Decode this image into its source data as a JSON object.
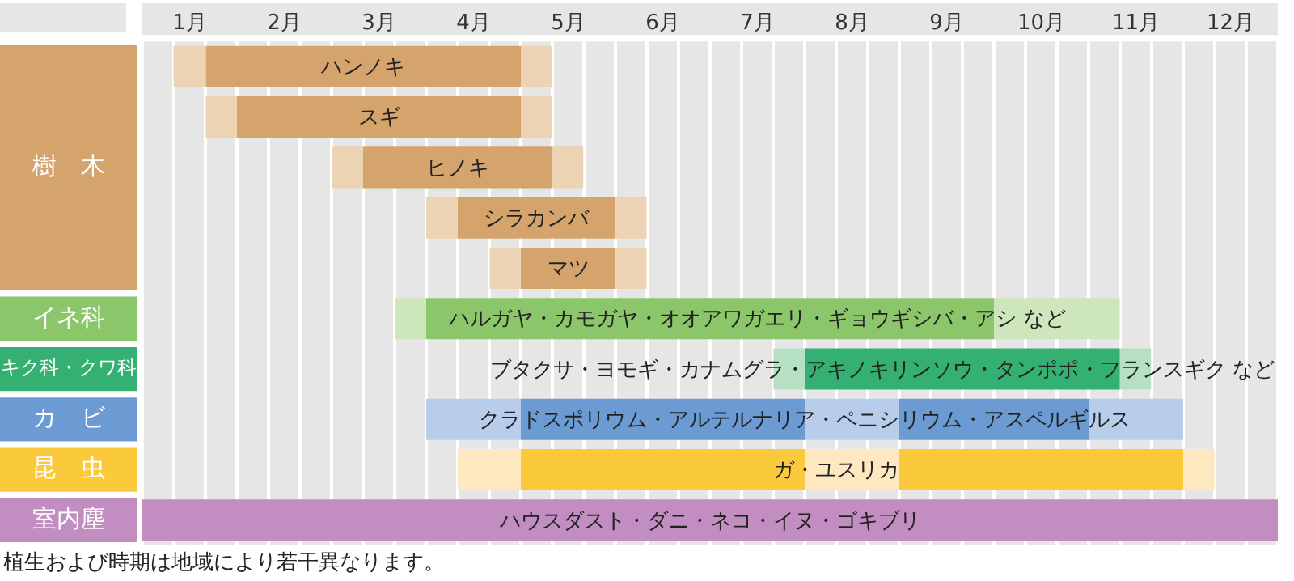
{
  "chart_data": {
    "type": "bar",
    "orientation": "horizontal",
    "categories": [
      "ハンノキ",
      "スギ",
      "ヒノキ",
      "シラカンバ",
      "マツ",
      "ハルガヤ・カモガヤ・オオアワガエリ・ギョウギシバ・アシ など",
      "ブタクサ・ヨモギ・カナムグラ・アキノキリンソウ・タンポポ・フランスギク など",
      "クラドスポリウム・アルテルナリア・ペニシリウム・アスペルギルス",
      "ガ・ユスリカ",
      "ハウスダスト・ダニ・ネコ・イヌ・ゴキブリ"
    ],
    "series": [
      {
        "values": [
          0.33,
          0.33,
          0.33,
          0.33,
          0.33,
          0.33,
          0.33,
          1,
          0.67,
          null
        ],
        "base": [
          0.83,
          1.17,
          2.5,
          3.5,
          4.17,
          3.17,
          7.17,
          3.5,
          3.83,
          null
        ],
        "colors": [
          "#ecd3b4",
          "#ecd3b4",
          "#ecd3b4",
          "#ecd3b4",
          "#ecd3b4",
          "#cde6bc",
          "#b5e0c4",
          "#b8cdea",
          "#fde8bf",
          null
        ]
      },
      {
        "values": [
          3.33,
          3,
          2,
          1.67,
          1,
          6,
          3.33,
          3,
          3,
          12
        ],
        "base": [
          1.17,
          1.5,
          2.83,
          3.83,
          4.5,
          3.5,
          7.5,
          4.5,
          4.5,
          0.5
        ],
        "colors": [
          "#d4a46c",
          "#d4a46c",
          "#d4a46c",
          "#d4a46c",
          "#d4a46c",
          "#8cc66a",
          "#35b073",
          "#6b9bd2",
          "#fac93c",
          "#c28dc0"
        ]
      },
      {
        "values": [
          0.33,
          0.33,
          0.33,
          0.33,
          0.33,
          1.33,
          0.33,
          1,
          1,
          null
        ],
        "base": [
          4.5,
          4.5,
          4.83,
          5.5,
          5.5,
          9.5,
          10.83,
          7.5,
          7.5,
          null
        ],
        "colors": [
          "#ecd3b4",
          "#ecd3b4",
          "#ecd3b4",
          "#ecd3b4",
          "#ecd3b4",
          "#cde6bc",
          "#b5e0c4",
          "#b8cdea",
          "#fde8bf",
          null
        ]
      },
      {
        "values": [
          null,
          null,
          null,
          null,
          null,
          null,
          null,
          2,
          3,
          null
        ],
        "base": [
          null,
          null,
          null,
          null,
          null,
          null,
          null,
          8.5,
          8.5,
          null
        ],
        "colors": [
          null,
          null,
          null,
          null,
          null,
          null,
          null,
          "#6b9bd2",
          "#fac93c",
          null
        ]
      },
      {
        "values": [
          null,
          null,
          null,
          null,
          null,
          null,
          null,
          1,
          0.33,
          null
        ],
        "base": [
          null,
          null,
          null,
          null,
          null,
          null,
          null,
          10.5,
          11.5,
          null
        ],
        "colors": [
          null,
          null,
          null,
          null,
          null,
          null,
          null,
          "#b8cdea",
          "#fde8bf",
          null
        ]
      }
    ],
    "xlim": [
      0.5,
      12.5
    ],
    "xticks": [
      {
        "value": 0.5,
        "label": null
      },
      {
        "value": 0.83,
        "label": null
      },
      {
        "value": 1,
        "label": "1月"
      },
      {
        "value": 1.17,
        "label": null
      },
      {
        "value": 1.5,
        "label": null
      },
      {
        "value": 1.83,
        "label": null
      },
      {
        "value": 2,
        "label": "2月"
      },
      {
        "value": 2.17,
        "label": null
      },
      {
        "value": 2.5,
        "label": null
      },
      {
        "value": 2.83,
        "label": null
      },
      {
        "value": 3,
        "label": "3月"
      },
      {
        "value": 3.17,
        "label": null
      },
      {
        "value": 3.5,
        "label": null
      },
      {
        "value": 3.83,
        "label": null
      },
      {
        "value": 4,
        "label": "4月"
      },
      {
        "value": 4.17,
        "label": null
      },
      {
        "value": 4.5,
        "label": null
      },
      {
        "value": 4.83,
        "label": null
      },
      {
        "value": 5,
        "label": "5月"
      },
      {
        "value": 5.17,
        "label": null
      },
      {
        "value": 5.5,
        "label": null
      },
      {
        "value": 5.83,
        "label": null
      },
      {
        "value": 6,
        "label": "6月"
      },
      {
        "value": 6.17,
        "label": null
      },
      {
        "value": 6.5,
        "label": null
      },
      {
        "value": 6.83,
        "label": null
      },
      {
        "value": 7,
        "label": "7月"
      },
      {
        "value": 7.17,
        "label": null
      },
      {
        "value": 7.5,
        "label": null
      },
      {
        "value": 7.83,
        "label": null
      },
      {
        "value": 8,
        "label": "8月"
      },
      {
        "value": 8.17,
        "label": null
      },
      {
        "value": 8.5,
        "label": null
      },
      {
        "value": 8.83,
        "label": null
      },
      {
        "value": 9,
        "label": "9月"
      },
      {
        "value": 9.17,
        "label": null
      },
      {
        "value": 9.5,
        "label": null
      },
      {
        "value": 9.83,
        "label": null
      },
      {
        "value": 10,
        "label": "10月"
      },
      {
        "value": 10.17,
        "label": null
      },
      {
        "value": 10.5,
        "label": null
      },
      {
        "value": 10.83,
        "label": null
      },
      {
        "value": 11,
        "label": "11月"
      },
      {
        "value": 11.17,
        "label": null
      },
      {
        "value": 11.5,
        "label": null
      },
      {
        "value": 11.83,
        "label": null
      },
      {
        "value": 12,
        "label": "12月"
      },
      {
        "value": 12.17,
        "label": null
      },
      {
        "value": 12.5,
        "label": null
      }
    ],
    "grid": "x",
    "tick_labels": "x",
    "annotations": [
      "樹　木",
      "イネ科",
      "キク科・クワ科",
      "カ　ビ",
      "昆　虫",
      "室内塵",
      "植生および時期は地域により若干異なります。"
    ]
  }
}
